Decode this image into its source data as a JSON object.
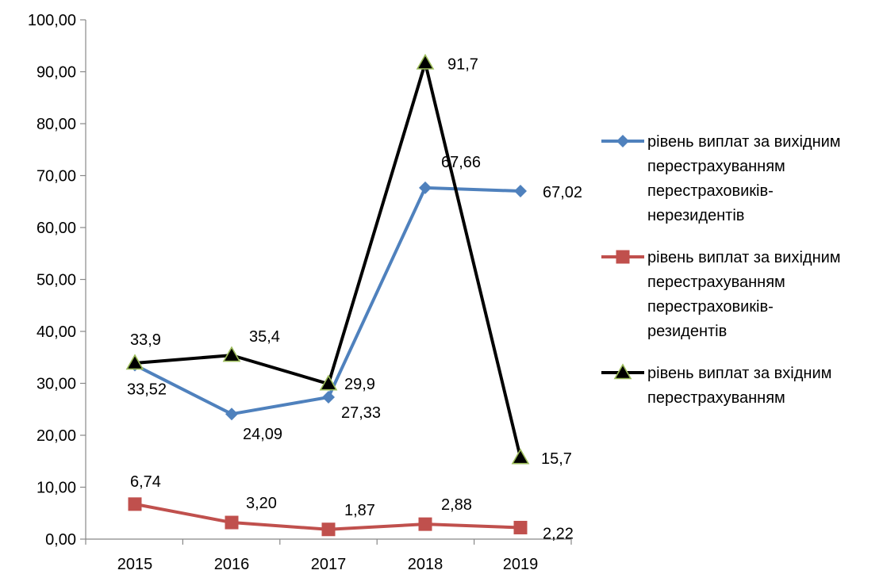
{
  "chart_data": {
    "type": "line",
    "title": "",
    "xlabel": "",
    "ylabel": "",
    "categories": [
      "2015",
      "2016",
      "2017",
      "2018",
      "2019"
    ],
    "ylim": [
      0,
      100
    ],
    "ytick_step": 10,
    "ytick_labels": [
      "0,00",
      "10,00",
      "20,00",
      "30,00",
      "40,00",
      "50,00",
      "60,00",
      "70,00",
      "80,00",
      "90,00",
      "100,00"
    ],
    "grid": false,
    "legend_position": "right",
    "series": [
      {
        "name": "рівень виплат за вихідним перестрахуванням перестраховиків-нерезидентів",
        "legend_lines": [
          "рівень виплат за вихідним",
          "перестрахуванням",
          "перестраховиків-",
          "нерезидентів"
        ],
        "values": [
          33.52,
          24.09,
          27.33,
          67.66,
          67.02
        ],
        "labels": [
          "33,52",
          "24,09",
          "27,33",
          "67,66",
          "67,02"
        ],
        "color": "#4F81BD",
        "marker": "diamond"
      },
      {
        "name": "рівень виплат за вихідним перестрахуванням перестраховиків-резидентів",
        "legend_lines": [
          "рівень виплат за вихідним",
          "перестрахуванням",
          "перестраховиків-",
          "резидентів"
        ],
        "values": [
          6.74,
          3.2,
          1.87,
          2.88,
          2.22
        ],
        "labels": [
          "6,74",
          "3,20",
          "1,87",
          "2,88",
          "2,22"
        ],
        "color": "#C0504D",
        "marker": "square"
      },
      {
        "name": "рівень виплат за вхідним перестрахуванням",
        "legend_lines": [
          "рівень виплат за вхідним",
          "перестрахуванням"
        ],
        "values": [
          33.9,
          35.4,
          29.9,
          91.7,
          15.7
        ],
        "labels": [
          "33,9",
          "35,4",
          "29,9",
          "91,7",
          "15,7"
        ],
        "color": "#000000",
        "marker": "triangle",
        "marker_fill": "#000000",
        "marker_stroke": "#9BBB59"
      }
    ]
  }
}
